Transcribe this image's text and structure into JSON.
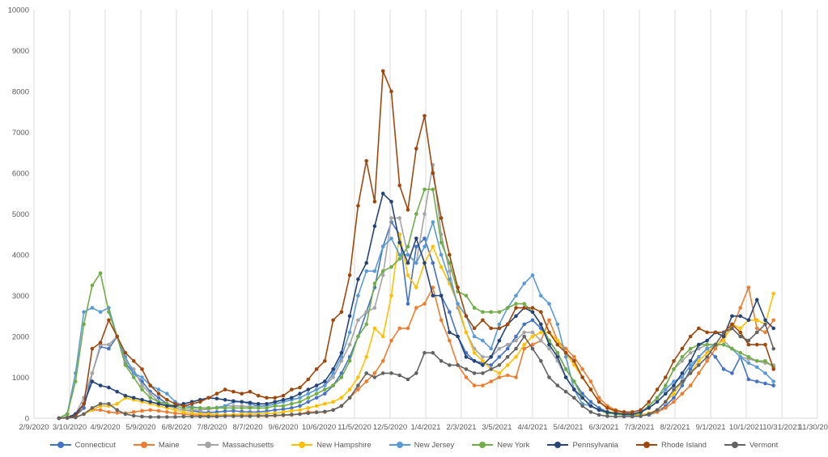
{
  "chart_data": {
    "type": "line",
    "xlim": [
      "2/9/2020",
      "11/30/2021"
    ],
    "ylim": [
      0,
      10000
    ],
    "x_ticks": [
      "2/9/2020",
      "3/10/2020",
      "4/9/2020",
      "5/9/2020",
      "6/8/2020",
      "7/8/2020",
      "8/7/2020",
      "9/6/2020",
      "10/6/2020",
      "11/5/2020",
      "12/5/2020",
      "1/4/2021",
      "2/3/2021",
      "3/5/2021",
      "4/4/2021",
      "5/4/2021",
      "6/3/2021",
      "7/3/2021",
      "8/2/2021",
      "9/1/2021",
      "10/1/2021",
      "10/31/2021",
      "11/30/2021"
    ],
    "y_ticks": [
      0,
      1000,
      2000,
      3000,
      4000,
      5000,
      6000,
      7000,
      8000,
      9000,
      10000
    ],
    "grid": "vertical",
    "legend_position": "bottom",
    "x": [
      "2020-03-01",
      "2020-03-08",
      "2020-03-15",
      "2020-03-22",
      "2020-03-29",
      "2020-04-05",
      "2020-04-12",
      "2020-04-19",
      "2020-04-26",
      "2020-05-03",
      "2020-05-10",
      "2020-05-17",
      "2020-05-24",
      "2020-05-31",
      "2020-06-07",
      "2020-06-14",
      "2020-06-21",
      "2020-06-28",
      "2020-07-05",
      "2020-07-12",
      "2020-07-19",
      "2020-07-26",
      "2020-08-02",
      "2020-08-09",
      "2020-08-16",
      "2020-08-23",
      "2020-08-30",
      "2020-09-06",
      "2020-09-13",
      "2020-09-20",
      "2020-09-27",
      "2020-10-04",
      "2020-10-11",
      "2020-10-18",
      "2020-10-25",
      "2020-11-01",
      "2020-11-08",
      "2020-11-15",
      "2020-11-22",
      "2020-11-29",
      "2020-12-06",
      "2020-12-13",
      "2020-12-20",
      "2020-12-27",
      "2021-01-03",
      "2021-01-10",
      "2021-01-17",
      "2021-01-24",
      "2021-01-31",
      "2021-02-07",
      "2021-02-14",
      "2021-02-21",
      "2021-02-28",
      "2021-03-07",
      "2021-03-14",
      "2021-03-21",
      "2021-03-28",
      "2021-04-04",
      "2021-04-11",
      "2021-04-18",
      "2021-04-25",
      "2021-05-02",
      "2021-05-09",
      "2021-05-16",
      "2021-05-23",
      "2021-05-30",
      "2021-06-06",
      "2021-06-13",
      "2021-06-20",
      "2021-06-27",
      "2021-07-04",
      "2021-07-11",
      "2021-07-18",
      "2021-07-25",
      "2021-08-01",
      "2021-08-08",
      "2021-08-15",
      "2021-08-22",
      "2021-08-29",
      "2021-09-05",
      "2021-09-12",
      "2021-09-19",
      "2021-09-26",
      "2021-10-03",
      "2021-10-10",
      "2021-10-17",
      "2021-10-24"
    ],
    "series": [
      {
        "name": "Connecticut",
        "color": "#4472C4",
        "values": [
          0,
          20,
          60,
          250,
          1100,
          1750,
          1700,
          2000,
          1350,
          1100,
          900,
          650,
          500,
          350,
          250,
          200,
          180,
          150,
          140,
          150,
          170,
          180,
          160,
          150,
          150,
          170,
          200,
          220,
          250,
          300,
          400,
          500,
          600,
          800,
          1100,
          1500,
          2000,
          2600,
          3200,
          4200,
          4800,
          4500,
          2800,
          4200,
          4400,
          3800,
          3000,
          2600,
          2000,
          1600,
          1400,
          1350,
          1300,
          1500,
          1700,
          2000,
          2300,
          2400,
          2200,
          1900,
          1600,
          1200,
          900,
          600,
          400,
          250,
          150,
          100,
          80,
          70,
          60,
          80,
          150,
          300,
          500,
          800,
          1200,
          1500,
          1700,
          1500,
          1200,
          1100,
          1500,
          950,
          900,
          850,
          800
        ]
      },
      {
        "name": "Maine",
        "color": "#ED7D31",
        "values": [
          0,
          5,
          20,
          100,
          200,
          200,
          150,
          130,
          120,
          150,
          180,
          200,
          180,
          150,
          120,
          100,
          80,
          70,
          60,
          60,
          60,
          60,
          60,
          60,
          50,
          50,
          60,
          70,
          80,
          100,
          150,
          150,
          150,
          200,
          300,
          500,
          700,
          900,
          1100,
          1400,
          1900,
          2200,
          2200,
          2700,
          2800,
          3200,
          2400,
          1900,
          1300,
          1000,
          800,
          800,
          900,
          1000,
          1050,
          1000,
          1700,
          1800,
          1900,
          2400,
          1900,
          1700,
          1500,
          1200,
          900,
          500,
          300,
          200,
          150,
          100,
          80,
          100,
          150,
          250,
          400,
          600,
          800,
          1100,
          1400,
          1700,
          2000,
          2200,
          2700,
          3200,
          2200,
          2100,
          2400
        ]
      },
      {
        "name": "Massachusetts",
        "color": "#A5A5A5",
        "values": [
          0,
          30,
          100,
          500,
          1100,
          1800,
          1800,
          2000,
          1400,
          1200,
          800,
          600,
          400,
          300,
          250,
          200,
          200,
          200,
          220,
          250,
          300,
          300,
          300,
          280,
          300,
          300,
          350,
          400,
          450,
          500,
          600,
          700,
          800,
          1000,
          1400,
          1800,
          2400,
          2600,
          2700,
          3500,
          4900,
          4900,
          4000,
          3800,
          5000,
          6200,
          4500,
          3600,
          2700,
          2100,
          1700,
          1500,
          1500,
          1700,
          1800,
          1900,
          2100,
          2100,
          1900,
          1700,
          1400,
          1000,
          700,
          500,
          300,
          200,
          150,
          120,
          100,
          100,
          120,
          300,
          500,
          800,
          1200,
          1400,
          1600,
          1700,
          1800,
          1800,
          1900,
          1700,
          1500,
          1450,
          1400,
          1350,
          1300
        ]
      },
      {
        "name": "New Hampshire",
        "color": "#FFC000",
        "values": [
          0,
          5,
          20,
          100,
          200,
          300,
          300,
          350,
          500,
          450,
          400,
          350,
          300,
          250,
          200,
          150,
          120,
          100,
          100,
          90,
          90,
          90,
          100,
          100,
          100,
          110,
          120,
          150,
          180,
          200,
          250,
          300,
          350,
          400,
          500,
          700,
          1000,
          1500,
          2200,
          2000,
          3000,
          4500,
          3500,
          3200,
          3800,
          4200,
          3700,
          3300,
          2800,
          2100,
          1600,
          1400,
          1200,
          1100,
          1300,
          1500,
          1800,
          2000,
          2100,
          2100,
          1900,
          1600,
          1300,
          1000,
          700,
          400,
          250,
          150,
          100,
          80,
          80,
          120,
          200,
          400,
          600,
          900,
          1100,
          1400,
          1600,
          1800,
          1900,
          2300,
          2200,
          2400,
          2400,
          2300,
          3050
        ]
      },
      {
        "name": "New Jersey",
        "color": "#5B9BD5",
        "values": [
          0,
          100,
          1100,
          2600,
          2700,
          2600,
          2700,
          2000,
          1500,
          1100,
          1000,
          800,
          700,
          600,
          400,
          300,
          280,
          250,
          250,
          260,
          300,
          400,
          400,
          350,
          300,
          300,
          350,
          400,
          450,
          500,
          600,
          700,
          800,
          1100,
          1500,
          2100,
          3000,
          3600,
          3600,
          4200,
          4400,
          4000,
          4000,
          3800,
          4200,
          4800,
          4000,
          3400,
          2800,
          2500,
          2000,
          1900,
          1700,
          2300,
          2700,
          3000,
          3300,
          3500,
          3000,
          2800,
          2300,
          1500,
          700,
          350,
          300,
          200,
          150,
          120,
          100,
          100,
          150,
          300,
          500,
          700,
          900,
          1000,
          1300,
          1500,
          1700,
          1800,
          1800,
          1700,
          1500,
          1350,
          1250,
          1100,
          900
        ]
      },
      {
        "name": "New York",
        "color": "#70AD47",
        "values": [
          0,
          100,
          900,
          2300,
          3250,
          3550,
          2600,
          2000,
          1300,
          1000,
          700,
          500,
          400,
          350,
          300,
          250,
          250,
          250,
          250,
          250,
          250,
          250,
          250,
          250,
          250,
          250,
          300,
          300,
          350,
          400,
          500,
          600,
          700,
          800,
          1000,
          1400,
          2000,
          2300,
          3300,
          3600,
          3700,
          3900,
          4200,
          5000,
          5600,
          5600,
          4300,
          3800,
          3100,
          3000,
          2700,
          2600,
          2600,
          2600,
          2700,
          2800,
          2800,
          2600,
          2300,
          1900,
          1600,
          1200,
          900,
          500,
          300,
          200,
          120,
          100,
          80,
          80,
          120,
          300,
          500,
          800,
          1200,
          1500,
          1700,
          1800,
          1800,
          1800,
          1800,
          1700,
          1600,
          1500,
          1400,
          1400,
          1250
        ]
      },
      {
        "name": "Pennsylvania",
        "color": "#264478",
        "values": [
          0,
          10,
          100,
          350,
          900,
          800,
          750,
          650,
          550,
          500,
          450,
          400,
          350,
          300,
          300,
          350,
          400,
          450,
          500,
          480,
          450,
          420,
          400,
          380,
          350,
          350,
          400,
          450,
          500,
          600,
          700,
          800,
          900,
          1200,
          1600,
          2500,
          3400,
          3800,
          4700,
          5500,
          5300,
          4300,
          3800,
          4400,
          3800,
          3000,
          3000,
          2100,
          2000,
          1500,
          1400,
          1300,
          1500,
          1900,
          2300,
          2500,
          2700,
          2600,
          2300,
          1800,
          1500,
          1000,
          700,
          500,
          300,
          200,
          150,
          120,
          100,
          100,
          150,
          250,
          400,
          600,
          800,
          1100,
          1400,
          1800,
          1900,
          2100,
          2000,
          2500,
          2500,
          2400,
          2900,
          2400,
          2200
        ]
      },
      {
        "name": "Rhode Island",
        "color": "#9E480E",
        "values": [
          0,
          10,
          50,
          350,
          1700,
          1850,
          2400,
          2000,
          1600,
          1400,
          1200,
          800,
          600,
          450,
          350,
          300,
          350,
          400,
          500,
          600,
          700,
          650,
          600,
          650,
          550,
          500,
          500,
          550,
          700,
          750,
          950,
          1200,
          1400,
          2400,
          2600,
          3500,
          5200,
          6300,
          5300,
          8500,
          8000,
          5700,
          5100,
          6600,
          7400,
          6000,
          4900,
          4000,
          3200,
          2500,
          2200,
          2400,
          2200,
          2200,
          2300,
          2700,
          2700,
          2700,
          2600,
          2100,
          1800,
          1600,
          1400,
          1000,
          700,
          400,
          250,
          180,
          150,
          150,
          200,
          400,
          700,
          1000,
          1400,
          1700,
          2000,
          2200,
          2100,
          2100,
          2100,
          2300,
          2100,
          1800,
          1800,
          1800,
          1200
        ]
      },
      {
        "name": "Vermont",
        "color": "#636363",
        "values": [
          0,
          5,
          20,
          100,
          250,
          350,
          350,
          200,
          100,
          60,
          40,
          30,
          30,
          30,
          30,
          40,
          40,
          40,
          40,
          40,
          50,
          50,
          50,
          50,
          60,
          60,
          70,
          80,
          90,
          100,
          120,
          140,
          160,
          200,
          300,
          500,
          800,
          1100,
          1000,
          1100,
          1100,
          1050,
          950,
          1100,
          1600,
          1600,
          1400,
          1300,
          1300,
          1200,
          1100,
          1100,
          1200,
          1300,
          1500,
          1700,
          2000,
          1700,
          1400,
          1000,
          800,
          650,
          500,
          300,
          150,
          80,
          50,
          40,
          40,
          40,
          50,
          100,
          200,
          400,
          700,
          900,
          1100,
          1300,
          1500,
          1800,
          2100,
          2200,
          2000,
          1900,
          2100,
          2300,
          1700
        ]
      }
    ]
  }
}
